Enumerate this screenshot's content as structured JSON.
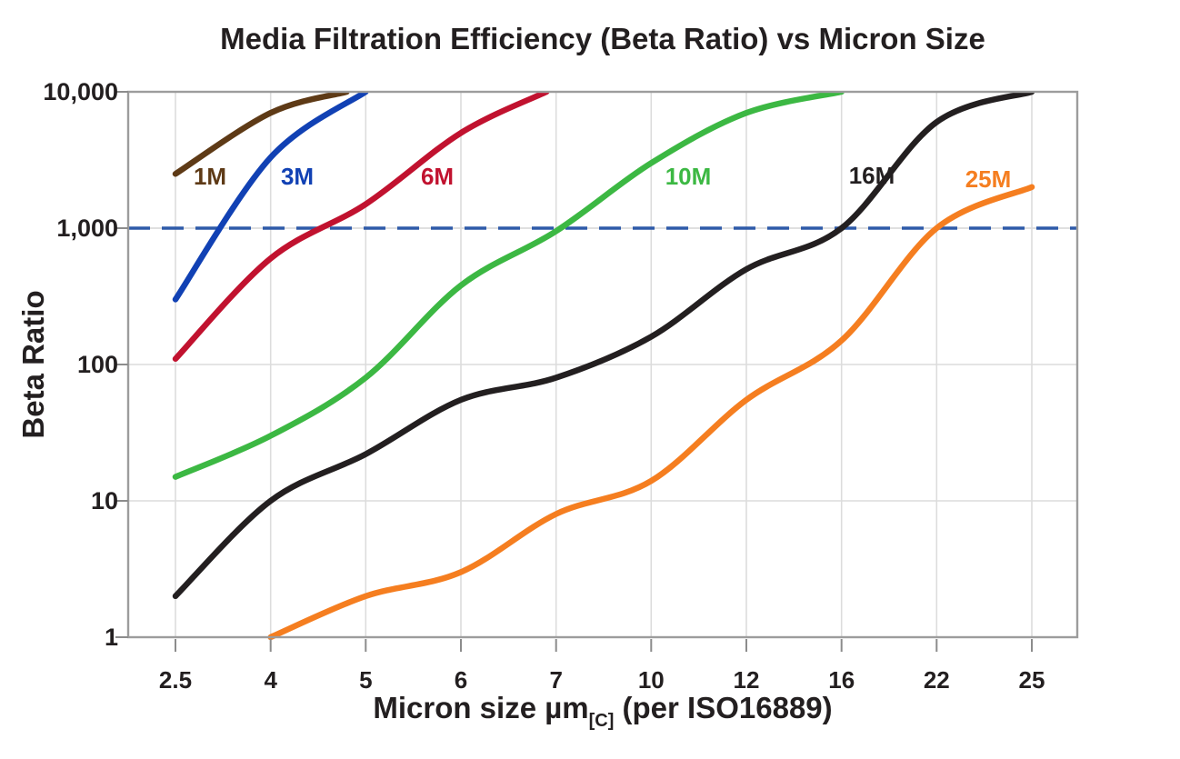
{
  "chart_data": {
    "type": "line",
    "title": "Media Filtration Efficiency (Beta Ratio) vs Micron Size",
    "xlabel": "Micron size µm[C] (per ISO16889)",
    "xlabel_main": "Micron size µm",
    "xlabel_sub": "[C]",
    "xlabel_suffix": " (per ISO16889)",
    "ylabel": "Beta Ratio",
    "x_scale": "categorical",
    "y_scale": "log",
    "x_categories": [
      2.5,
      4,
      5,
      6,
      7,
      10,
      12,
      16,
      22,
      25
    ],
    "x_tick_labels": [
      "2.5",
      "4",
      "5",
      "6",
      "7",
      "10",
      "12",
      "16",
      "22",
      "25"
    ],
    "y_ticks": [
      1,
      10,
      100,
      1000,
      10000
    ],
    "y_tick_labels": [
      "1",
      "10",
      "100",
      "1,000",
      "10,000"
    ],
    "ylim": [
      1,
      10000
    ],
    "grid": true,
    "legend": "inline-labels-on-curves",
    "reference_line": {
      "value": 1000,
      "label": "",
      "style": "dashed",
      "color": "#2E5AA8"
    },
    "series": [
      {
        "name": "1M",
        "color": "#5E3A16",
        "points": [
          [
            2.5,
            2500
          ],
          [
            4,
            7000
          ],
          [
            4.8,
            10000
          ]
        ]
      },
      {
        "name": "3M",
        "color": "#1141B4",
        "points": [
          [
            2.5,
            300
          ],
          [
            4,
            3300
          ],
          [
            5,
            10000
          ]
        ]
      },
      {
        "name": "6M",
        "color": "#C1122F",
        "points": [
          [
            2.5,
            110
          ],
          [
            4,
            600
          ],
          [
            5,
            1500
          ],
          [
            6,
            5000
          ],
          [
            6.9,
            10000
          ]
        ]
      },
      {
        "name": "10M",
        "color": "#3CB843",
        "points": [
          [
            2.5,
            15
          ],
          [
            4,
            30
          ],
          [
            5,
            80
          ],
          [
            6,
            380
          ],
          [
            7,
            950
          ],
          [
            10,
            3000
          ],
          [
            12,
            7000
          ],
          [
            16,
            10000
          ]
        ]
      },
      {
        "name": "16M",
        "color": "#231F20",
        "points": [
          [
            2.5,
            2
          ],
          [
            4,
            10
          ],
          [
            5,
            22
          ],
          [
            6,
            55
          ],
          [
            7,
            80
          ],
          [
            10,
            160
          ],
          [
            12,
            500
          ],
          [
            16,
            1000
          ],
          [
            22,
            6000
          ],
          [
            25,
            10000
          ]
        ]
      },
      {
        "name": "25M",
        "color": "#F57E20",
        "points": [
          [
            4,
            1
          ],
          [
            5,
            2
          ],
          [
            6,
            3
          ],
          [
            7,
            8
          ],
          [
            10,
            14
          ],
          [
            12,
            55
          ],
          [
            16,
            150
          ],
          [
            22,
            1000
          ],
          [
            25,
            2000
          ]
        ]
      }
    ],
    "colors": {
      "background": "#FFFFFF",
      "gridline": "#DCDCDC",
      "frame": "#9C9C9C",
      "tick": "#8C8C8C",
      "text": "#231F20",
      "reference": "#2E5AA8"
    }
  }
}
